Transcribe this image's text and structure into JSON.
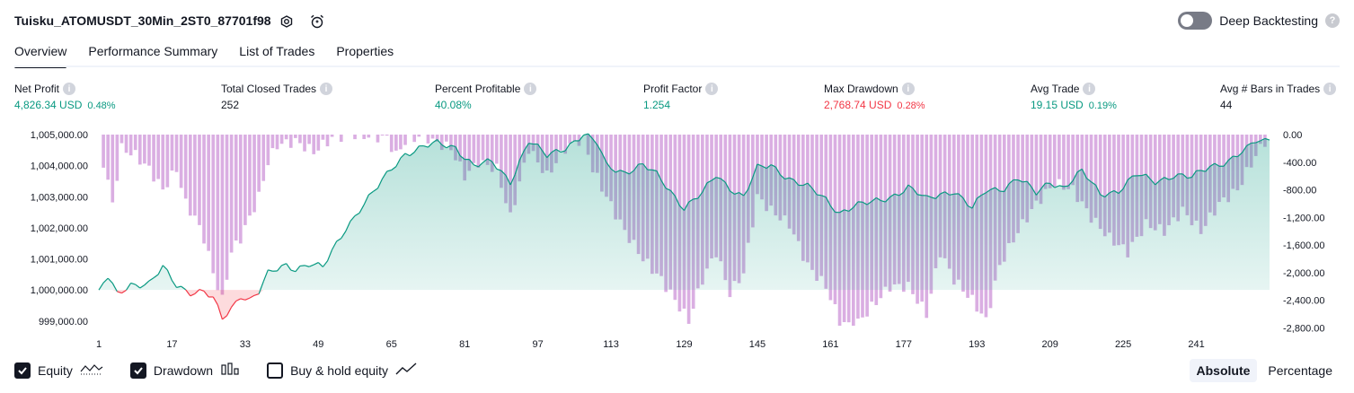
{
  "header": {
    "strategy_name": "Tuisku_ATOMUSDT_30Min_2ST0_87701f98",
    "settings_icon": "gear-icon",
    "alert_icon": "alarm-clock-icon",
    "deep_backtesting_label": "Deep Backtesting",
    "deep_backtesting_enabled": false,
    "help_icon": "question-icon"
  },
  "tabs": [
    {
      "label": "Overview",
      "active": true
    },
    {
      "label": "Performance Summary",
      "active": false
    },
    {
      "label": "List of Trades",
      "active": false
    },
    {
      "label": "Properties",
      "active": false
    }
  ],
  "metrics": [
    {
      "label": "Net Profit",
      "value": "4,826.34 USD",
      "pct": "0.48%",
      "color": "#089981"
    },
    {
      "label": "Total Closed Trades",
      "value": "252",
      "pct": "",
      "color": "#131722"
    },
    {
      "label": "Percent Profitable",
      "value": "40.08%",
      "pct": "",
      "color": "#089981"
    },
    {
      "label": "Profit Factor",
      "value": "1.254",
      "pct": "",
      "color": "#089981"
    },
    {
      "label": "Max Drawdown",
      "value": "2,768.74 USD",
      "pct": "0.28%",
      "color": "#f23645"
    },
    {
      "label": "Avg Trade",
      "value": "19.15 USD",
      "pct": "0.19%",
      "color": "#089981"
    },
    {
      "label": "Avg # Bars in Trades",
      "value": "44",
      "pct": "",
      "color": "#131722"
    }
  ],
  "legend": {
    "equity_label": "Equity",
    "drawdown_label": "Drawdown",
    "buyhold_label": "Buy & hold equity",
    "equity_checked": true,
    "drawdown_checked": true,
    "buyhold_checked": false,
    "equity_icon": "equity-line-icon",
    "drawdown_icon": "drawdown-bars-icon",
    "buyhold_icon": "buyhold-line-icon"
  },
  "scale": {
    "absolute_label": "Absolute",
    "percentage_label": "Percentage",
    "active": "Absolute"
  },
  "chart_data": {
    "type": "area",
    "colors": {
      "equity_up": "#089981",
      "equity_down": "#f23645",
      "drawdown": "#ce93d8",
      "equity_fill": "#d6f1ea"
    },
    "left_axis": {
      "ticks": [
        "1,005,000.00",
        "1,004,000.00",
        "1,003,000.00",
        "1,002,000.00",
        "1,001,000.00",
        "1,000,000.00",
        "999,000.00"
      ],
      "ylim": [
        998850,
        1005000
      ],
      "baseline": 1000000
    },
    "right_axis": {
      "ticks": [
        "0.00",
        "-400.00",
        "-800.00",
        "-1,200.00",
        "-1,600.00",
        "-2,000.00",
        "-2,400.00",
        "-2,800.00"
      ],
      "ylim": [
        -2768.74,
        0
      ]
    },
    "x_ticks": [
      "1",
      "17",
      "33",
      "49",
      "65",
      "81",
      "97",
      "113",
      "129",
      "145",
      "161",
      "177",
      "193",
      "209",
      "225",
      "241"
    ],
    "equity_keypoints": [
      [
        1,
        1000000
      ],
      [
        3,
        1000400
      ],
      [
        5,
        999850
      ],
      [
        8,
        1000200
      ],
      [
        12,
        1000200
      ],
      [
        15,
        1000700
      ],
      [
        18,
        1000150
      ],
      [
        21,
        999950
      ],
      [
        24,
        999950
      ],
      [
        26,
        999700
      ],
      [
        28,
        999050
      ],
      [
        30,
        999400
      ],
      [
        32,
        999850
      ],
      [
        34,
        999700
      ],
      [
        36,
        999950
      ],
      [
        38,
        1000500
      ],
      [
        42,
        1000800
      ],
      [
        44,
        1000700
      ],
      [
        47,
        1000850
      ],
      [
        50,
        1000700
      ],
      [
        55,
        1002000
      ],
      [
        58,
        1002600
      ],
      [
        62,
        1003300
      ],
      [
        65,
        1003900
      ],
      [
        68,
        1004400
      ],
      [
        72,
        1004600
      ],
      [
        75,
        1004700
      ],
      [
        79,
        1004600
      ],
      [
        83,
        1004000
      ],
      [
        87,
        1004100
      ],
      [
        91,
        1003500
      ],
      [
        95,
        1004800
      ],
      [
        99,
        1004300
      ],
      [
        103,
        1004600
      ],
      [
        107,
        1005000
      ],
      [
        110,
        1004700
      ],
      [
        112,
        1004000
      ],
      [
        116,
        1003800
      ],
      [
        120,
        1004000
      ],
      [
        123,
        1003700
      ],
      [
        126,
        1003200
      ],
      [
        129,
        1002650
      ],
      [
        133,
        1003100
      ],
      [
        136,
        1003700
      ],
      [
        139,
        1003300
      ],
      [
        142,
        1003000
      ],
      [
        145,
        1003900
      ],
      [
        148,
        1004000
      ],
      [
        152,
        1003600
      ],
      [
        156,
        1003300
      ],
      [
        160,
        1002900
      ],
      [
        163,
        1002500
      ],
      [
        166,
        1002700
      ],
      [
        170,
        1002800
      ],
      [
        174,
        1003000
      ],
      [
        178,
        1003300
      ],
      [
        182,
        1002900
      ],
      [
        185,
        1003100
      ],
      [
        188,
        1003200
      ],
      [
        192,
        1002600
      ],
      [
        195,
        1003200
      ],
      [
        199,
        1003300
      ],
      [
        202,
        1003600
      ],
      [
        206,
        1003100
      ],
      [
        209,
        1003500
      ],
      [
        212,
        1003300
      ],
      [
        216,
        1003800
      ],
      [
        220,
        1003100
      ],
      [
        224,
        1003200
      ],
      [
        228,
        1003700
      ],
      [
        232,
        1003500
      ],
      [
        236,
        1003700
      ],
      [
        240,
        1003600
      ],
      [
        244,
        1004000
      ],
      [
        248,
        1004150
      ],
      [
        252,
        1004500
      ],
      [
        254,
        1004800
      ],
      [
        257,
        1004826
      ]
    ],
    "drawdown_keypoints": [
      [
        1,
        0
      ],
      [
        2,
        -400
      ],
      [
        4,
        -1000
      ],
      [
        6,
        -200
      ],
      [
        9,
        -300
      ],
      [
        12,
        -500
      ],
      [
        15,
        -800
      ],
      [
        18,
        -500
      ],
      [
        20,
        -1000
      ],
      [
        22,
        -1200
      ],
      [
        24,
        -1500
      ],
      [
        26,
        -2000
      ],
      [
        28,
        -2400
      ],
      [
        30,
        -1700
      ],
      [
        32,
        -1500
      ],
      [
        34,
        -1200
      ],
      [
        36,
        -900
      ],
      [
        38,
        -400
      ],
      [
        40,
        -150
      ],
      [
        44,
        -100
      ],
      [
        48,
        -250
      ],
      [
        52,
        -50
      ],
      [
        56,
        0
      ],
      [
        64,
        -50
      ],
      [
        66,
        -300
      ],
      [
        68,
        -100
      ],
      [
        72,
        0
      ],
      [
        74,
        -100
      ],
      [
        78,
        -200
      ],
      [
        81,
        -600
      ],
      [
        84,
        -400
      ],
      [
        88,
        -500
      ],
      [
        91,
        -1200
      ],
      [
        95,
        -200
      ],
      [
        99,
        -600
      ],
      [
        103,
        -200
      ],
      [
        107,
        -50
      ],
      [
        109,
        -500
      ],
      [
        112,
        -900
      ],
      [
        116,
        -1400
      ],
      [
        120,
        -1800
      ],
      [
        124,
        -2100
      ],
      [
        127,
        -2400
      ],
      [
        130,
        -2700
      ],
      [
        133,
        -2100
      ],
      [
        136,
        -1700
      ],
      [
        139,
        -2300
      ],
      [
        142,
        -2000
      ],
      [
        145,
        -900
      ],
      [
        148,
        -1100
      ],
      [
        152,
        -1300
      ],
      [
        156,
        -1900
      ],
      [
        160,
        -2200
      ],
      [
        163,
        -2700
      ],
      [
        166,
        -2800
      ],
      [
        170,
        -2500
      ],
      [
        174,
        -2200
      ],
      [
        178,
        -2200
      ],
      [
        182,
        -2600
      ],
      [
        185,
        -1700
      ],
      [
        188,
        -2100
      ],
      [
        192,
        -2400
      ],
      [
        195,
        -2700
      ],
      [
        198,
        -1900
      ],
      [
        202,
        -1400
      ],
      [
        206,
        -1000
      ],
      [
        210,
        -700
      ],
      [
        214,
        -800
      ],
      [
        218,
        -1200
      ],
      [
        222,
        -1500
      ],
      [
        226,
        -1700
      ],
      [
        230,
        -1300
      ],
      [
        234,
        -1400
      ],
      [
        238,
        -1100
      ],
      [
        242,
        -1400
      ],
      [
        246,
        -1000
      ],
      [
        250,
        -800
      ],
      [
        254,
        -300
      ],
      [
        257,
        0
      ]
    ]
  }
}
